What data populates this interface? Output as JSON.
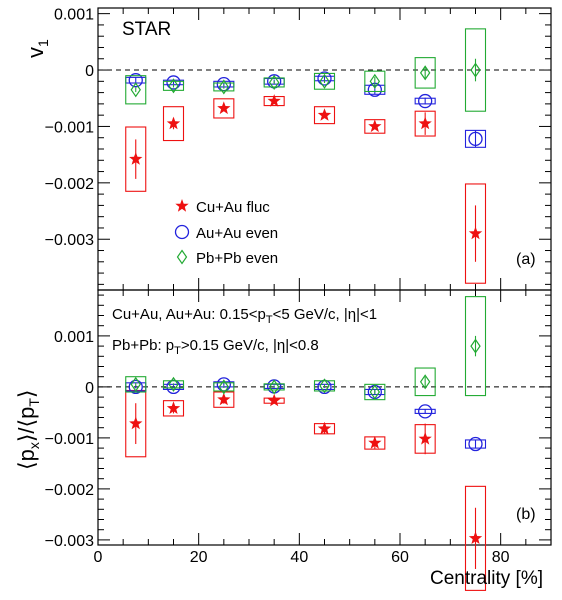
{
  "figure": {
    "x_axis_label": "Centrality [%]",
    "x_ticks": [
      "0",
      "20",
      "40",
      "60",
      "80"
    ],
    "colors": {
      "Cu+Au fluc": "#ee1111",
      "Au+Au even": "#2222dd",
      "Pb+Pb even": "#22aa33",
      "frame": "#000000"
    }
  },
  "chart_data": [
    {
      "type": "scatter",
      "panel_label": "(a)",
      "title": "STAR",
      "xlabel": "Centrality [%]",
      "ylabel": "v1",
      "ylabel_main": "v",
      "ylabel_sub": "1",
      "xlim": [
        0,
        90
      ],
      "ylim": [
        -0.0039,
        0.0011
      ],
      "y_ticks": [
        {
          "value": 0.001,
          "label": "0.001"
        },
        {
          "value": 0,
          "label": "0"
        },
        {
          "value": -0.001,
          "label": "−0.001"
        },
        {
          "value": -0.002,
          "label": "−0.002"
        },
        {
          "value": -0.003,
          "label": "−0.003"
        }
      ],
      "legend": [
        "Cu+Au fluc",
        "Au+Au even",
        "Pb+Pb even"
      ],
      "legend_position": "lower-center",
      "series": [
        {
          "name": "Cu+Au fluc",
          "marker": "star",
          "color": "#ee1111",
          "x": [
            7.5,
            15,
            25,
            35,
            45,
            55,
            65,
            75
          ],
          "y": [
            -0.00158,
            -0.00095,
            -0.00068,
            -0.00055,
            -0.0008,
            -0.001,
            -0.00095,
            -0.0029
          ],
          "stat_err": [
            0.00035,
            0.0001,
            5e-05,
            5e-05,
            4e-05,
            4e-05,
            0.0002,
            0.0005
          ],
          "sys_err": [
            0.00057,
            0.0003,
            0.00017,
            8e-05,
            0.00015,
            0.00012,
            0.00022,
            0.00088
          ]
        },
        {
          "name": "Au+Au even",
          "marker": "circle",
          "color": "#2222dd",
          "x": [
            7.5,
            15,
            25,
            35,
            45,
            55,
            65,
            75
          ],
          "y": [
            -0.00018,
            -0.00022,
            -0.00025,
            -0.0002,
            -0.00015,
            -0.00035,
            -0.00055,
            -0.00122
          ],
          "stat_err": [
            5e-05,
            4e-05,
            3e-05,
            3e-05,
            5e-05,
            8e-05,
            6e-05,
            0.00015
          ],
          "sys_err": [
            5e-05,
            4e-05,
            5e-05,
            5e-05,
            4e-05,
            8e-05,
            5e-05,
            0.00015
          ]
        },
        {
          "name": "Pb+Pb even",
          "marker": "diamond",
          "color": "#22aa33",
          "x": [
            7.5,
            15,
            25,
            35,
            45,
            55,
            65,
            75
          ],
          "y": [
            -0.00035,
            -0.00028,
            -0.0003,
            -0.00022,
            -0.0002,
            -0.0002,
            -5e-05,
            0.0
          ],
          "stat_err": [
            4e-05,
            3e-05,
            3e-05,
            3e-05,
            3e-05,
            8e-05,
            0.00012,
            0.0002
          ],
          "sys_err": [
            0.00025,
            8e-05,
            7e-05,
            8e-05,
            0.00014,
            0.00018,
            0.00027,
            0.00073
          ]
        }
      ]
    },
    {
      "type": "scatter",
      "panel_label": "(b)",
      "xlabel": "Centrality [%]",
      "ylabel": "⟨px⟩/⟨pT⟩",
      "ylabel_parts": {
        "open": "⟨p",
        "sub1": "x",
        "mid": "⟩/⟨p",
        "sub2": "T",
        "close": "⟩"
      },
      "xlim": [
        0,
        90
      ],
      "ylim": [
        -0.0031,
        0.0019
      ],
      "y_ticks": [
        {
          "value": 0.001,
          "label": "0.001"
        },
        {
          "value": 0,
          "label": "0"
        },
        {
          "value": -0.001,
          "label": "−0.001"
        },
        {
          "value": -0.002,
          "label": "−0.002"
        },
        {
          "value": -0.003,
          "label": "−0.003"
        }
      ],
      "annotations": [
        {
          "prefix": "Cu+Au, Au+Au: 0.15<p",
          "sub": "T",
          "suffix": "<5 GeV/c, |η|<1"
        },
        {
          "prefix": "Pb+Pb: p",
          "sub": "T",
          "suffix": ">0.15 GeV/c, |η|<0.8"
        }
      ],
      "series": [
        {
          "name": "Cu+Au fluc",
          "marker": "star",
          "color": "#ee1111",
          "x": [
            7.5,
            15,
            25,
            35,
            45,
            55,
            65,
            75
          ],
          "y": [
            -0.00072,
            -0.00042,
            -0.00025,
            -0.00027,
            -0.00082,
            -0.0011,
            -0.00102,
            -0.00297
          ],
          "stat_err": [
            0.0004,
            0.0001,
            8e-05,
            5e-05,
            0.0001,
            0.00012,
            0.0003,
            0.0006
          ],
          "sys_err": [
            0.00065,
            0.00015,
            0.00015,
            5e-05,
            0.0001,
            0.00012,
            0.00028,
            0.00102
          ]
        },
        {
          "name": "Au+Au even",
          "marker": "circle",
          "color": "#2222dd",
          "x": [
            7.5,
            15,
            25,
            35,
            45,
            55,
            65,
            75
          ],
          "y": [
            0.0,
            0.0,
            5e-05,
            1e-05,
            0.0,
            -0.0001,
            -0.00048,
            -0.00112
          ],
          "stat_err": [
            3e-05,
            3e-05,
            3e-05,
            2e-05,
            2e-05,
            5e-05,
            4e-05,
            8e-05
          ],
          "sys_err": [
            8e-05,
            5e-05,
            5e-05,
            4e-05,
            5e-05,
            5e-05,
            4e-05,
            8e-05
          ]
        },
        {
          "name": "Pb+Pb even",
          "marker": "diamond",
          "color": "#22aa33",
          "x": [
            7.5,
            15,
            25,
            35,
            45,
            55,
            65,
            75
          ],
          "y": [
            5e-05,
            5e-05,
            0.0,
            0.0,
            2e-05,
            -0.0001,
            0.0001,
            0.0008
          ],
          "stat_err": [
            3e-05,
            2e-05,
            2e-05,
            2e-05,
            3e-05,
            5e-05,
            0.0001,
            0.0002
          ],
          "sys_err": [
            0.00015,
            7e-05,
            8e-05,
            6e-05,
            0.0001,
            0.00015,
            0.00027,
            0.00097
          ]
        }
      ]
    }
  ]
}
